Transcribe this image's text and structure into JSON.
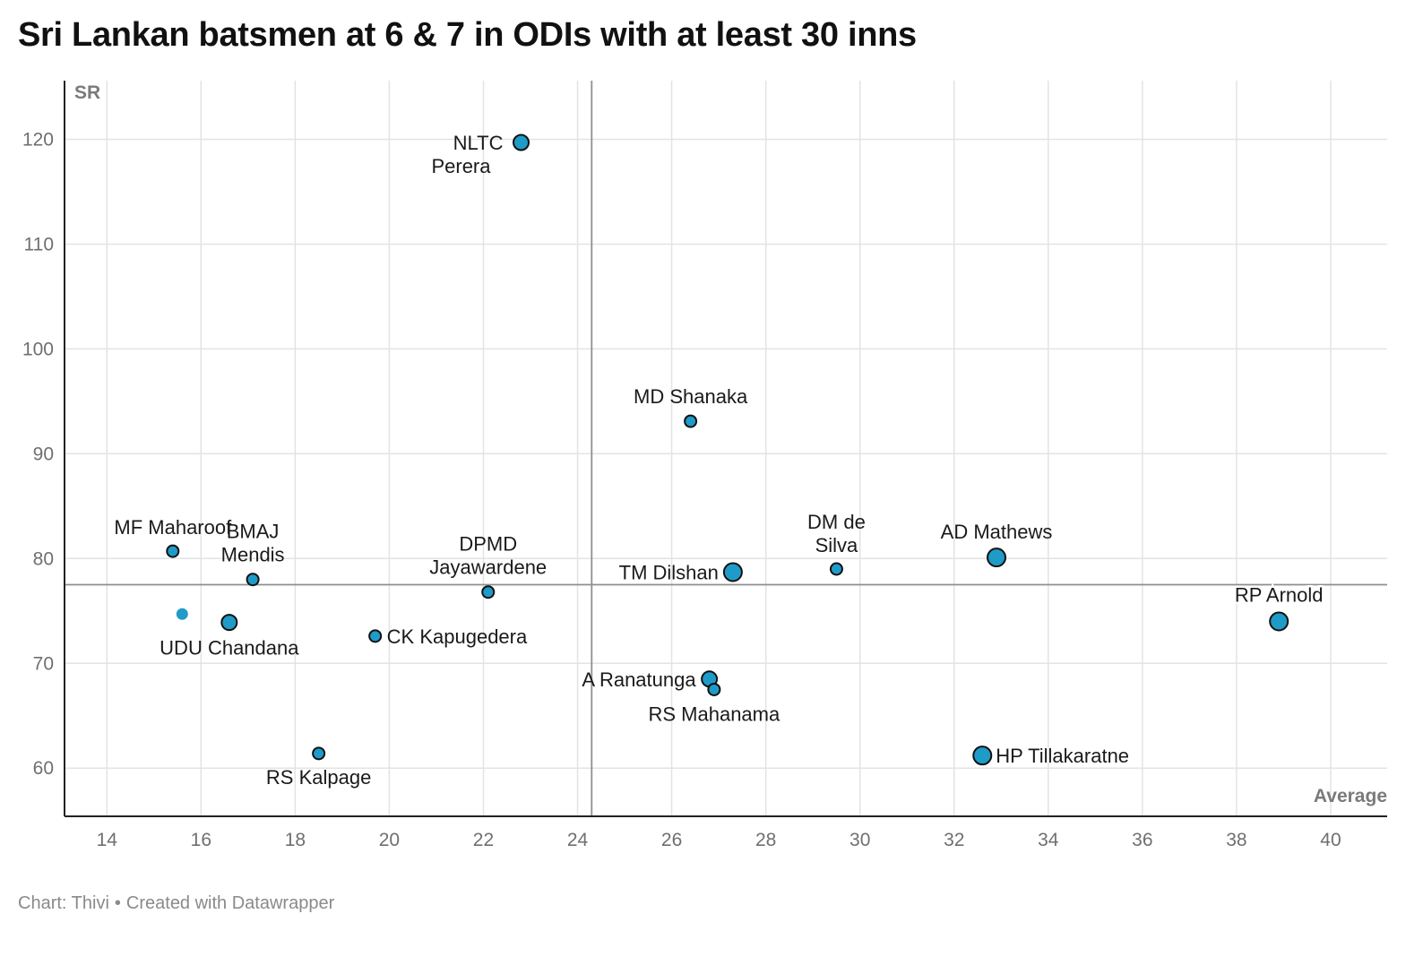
{
  "title": "Sri Lankan batsmen at 6 & 7 in ODIs with at least 30 inns",
  "footer": {
    "source": "Chart: Thivi",
    "separator": "•",
    "credit": "Created with Datawrapper"
  },
  "colors": {
    "point_fill": "#1f9bc8",
    "point_stroke": "#111111",
    "grid": "#e3e3e3",
    "reference_line": "#8f8f8f",
    "axis": "#222222"
  },
  "chart_data": {
    "type": "scatter",
    "title": "Sri Lankan batsmen at 6 & 7 in ODIs with at least 30 inns",
    "xlabel": "Average",
    "ylabel": "SR",
    "xlim": [
      13.1,
      41.2
    ],
    "ylim": [
      55.4,
      125.6
    ],
    "x_ticks": [
      14,
      16,
      18,
      20,
      22,
      24,
      26,
      28,
      30,
      32,
      34,
      36,
      38,
      40
    ],
    "y_ticks": [
      60,
      70,
      80,
      90,
      100,
      110,
      120
    ],
    "grid": true,
    "reference_lines": {
      "x": 24.3,
      "y": 77.5
    },
    "points": [
      {
        "name": "NLTC Perera",
        "label_lines": [
          "NLTC",
          "Perera"
        ],
        "x": 22.8,
        "y": 119.7,
        "size": "medium"
      },
      {
        "name": "MD Shanaka",
        "label_lines": [
          "MD Shanaka"
        ],
        "x": 26.4,
        "y": 93.1,
        "size": "small"
      },
      {
        "name": "MF Maharoof",
        "label_lines": [
          "MF Maharoof"
        ],
        "x": 15.4,
        "y": 80.7,
        "size": "small"
      },
      {
        "name": "BMAJ Mendis",
        "label_lines": [
          "BMAJ",
          "Mendis"
        ],
        "x": 17.1,
        "y": 78.0,
        "size": "small"
      },
      {
        "name": "DPMD Jayawardene",
        "label_lines": [
          "DPMD",
          "Jayawardene"
        ],
        "x": 22.1,
        "y": 76.8,
        "size": "small"
      },
      {
        "name": "TM Dilshan",
        "label_lines": [
          "TM Dilshan"
        ],
        "x": 27.3,
        "y": 78.7,
        "size": "large"
      },
      {
        "name": "DM de Silva",
        "label_lines": [
          "DM de",
          "Silva"
        ],
        "x": 29.5,
        "y": 79.0,
        "size": "small"
      },
      {
        "name": "AD Mathews",
        "label_lines": [
          "AD Mathews"
        ],
        "x": 32.9,
        "y": 80.1,
        "size": "large"
      },
      {
        "name": "RP Arnold",
        "label_lines": [
          "RP Arnold"
        ],
        "x": 38.9,
        "y": 74.0,
        "size": "large"
      },
      {
        "name": "",
        "label_lines": [],
        "x": 15.6,
        "y": 74.7,
        "size": "small",
        "no_outline": true
      },
      {
        "name": "UDU Chandana",
        "label_lines": [
          "UDU Chandana"
        ],
        "x": 16.6,
        "y": 73.9,
        "size": "medium"
      },
      {
        "name": "CK Kapugedera",
        "label_lines": [
          "CK Kapugedera"
        ],
        "x": 19.7,
        "y": 72.6,
        "size": "small"
      },
      {
        "name": "A Ranatunga",
        "label_lines": [
          "A Ranatunga"
        ],
        "x": 26.8,
        "y": 68.5,
        "size": "medium"
      },
      {
        "name": "RS Mahanama",
        "label_lines": [
          "RS Mahanama"
        ],
        "x": 26.9,
        "y": 67.5,
        "size": "small"
      },
      {
        "name": "RS Kalpage",
        "label_lines": [
          "RS Kalpage"
        ],
        "x": 18.5,
        "y": 61.4,
        "size": "small"
      },
      {
        "name": "HP Tillakaratne",
        "label_lines": [
          "HP Tillakaratne"
        ],
        "x": 32.6,
        "y": 61.2,
        "size": "large"
      }
    ]
  }
}
